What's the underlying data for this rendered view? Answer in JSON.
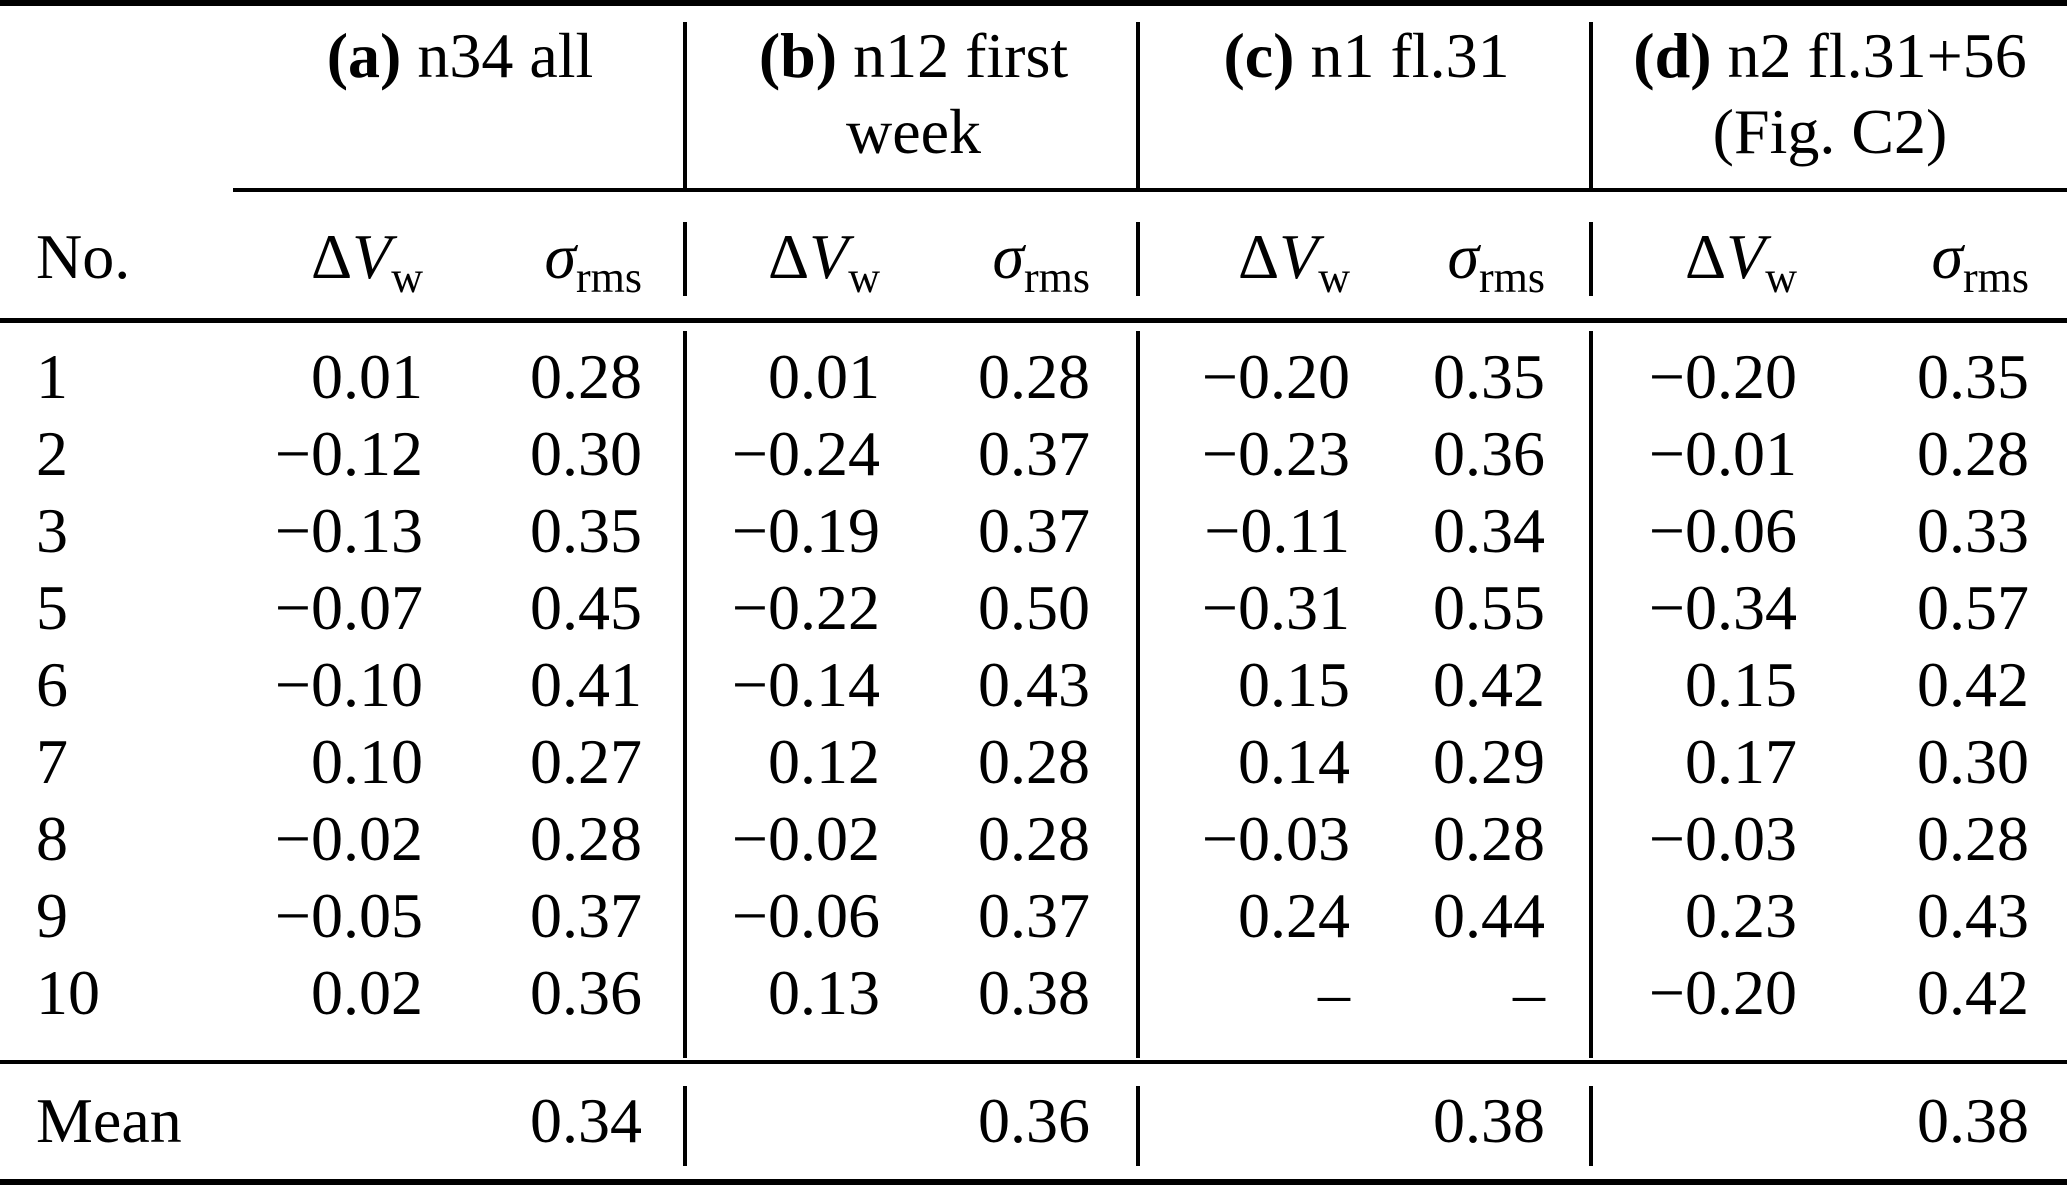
{
  "table": {
    "row_label_header": "No.",
    "groups": [
      {
        "tag": "(a)",
        "line1": "n34 all",
        "line2": ""
      },
      {
        "tag": "(b)",
        "line1": "n12 first",
        "line2": "week"
      },
      {
        "tag": "(c)",
        "line1": "n1 fl.31",
        "line2": ""
      },
      {
        "tag": "(d)",
        "line1": "n2 fl.31+56",
        "line2": "(Fig. C2)"
      }
    ],
    "sub": {
      "delta": "Δ",
      "v": "V",
      "w": "w",
      "sigma": "σ",
      "rms": "rms"
    },
    "rows": [
      {
        "no": "1",
        "values": [
          "0.01",
          "0.28",
          "0.01",
          "0.28",
          "−0.20",
          "0.35",
          "−0.20",
          "0.35"
        ]
      },
      {
        "no": "2",
        "values": [
          "−0.12",
          "0.30",
          "−0.24",
          "0.37",
          "−0.23",
          "0.36",
          "−0.01",
          "0.28"
        ]
      },
      {
        "no": "3",
        "values": [
          "−0.13",
          "0.35",
          "−0.19",
          "0.37",
          "−0.11",
          "0.34",
          "−0.06",
          "0.33"
        ]
      },
      {
        "no": "5",
        "values": [
          "−0.07",
          "0.45",
          "−0.22",
          "0.50",
          "−0.31",
          "0.55",
          "−0.34",
          "0.57"
        ]
      },
      {
        "no": "6",
        "values": [
          "−0.10",
          "0.41",
          "−0.14",
          "0.43",
          "0.15",
          "0.42",
          "0.15",
          "0.42"
        ]
      },
      {
        "no": "7",
        "values": [
          "0.10",
          "0.27",
          "0.12",
          "0.28",
          "0.14",
          "0.29",
          "0.17",
          "0.30"
        ]
      },
      {
        "no": "8",
        "values": [
          "−0.02",
          "0.28",
          "−0.02",
          "0.28",
          "−0.03",
          "0.28",
          "−0.03",
          "0.28"
        ]
      },
      {
        "no": "9",
        "values": [
          "−0.05",
          "0.37",
          "−0.06",
          "0.37",
          "0.24",
          "0.44",
          "0.23",
          "0.43"
        ]
      },
      {
        "no": "10",
        "values": [
          "0.02",
          "0.36",
          "0.13",
          "0.38",
          "–",
          "–",
          "−0.20",
          "0.42"
        ]
      }
    ],
    "mean": {
      "label": "Mean",
      "values": [
        "0.34",
        "0.36",
        "0.38",
        "0.38"
      ]
    }
  },
  "chart_data": {
    "type": "table",
    "title": "",
    "column_groups": [
      "(a) n34 all",
      "(b) n12 first week",
      "(c) n1 fl.31",
      "(d) n2 fl.31+56 (Fig. C2)"
    ],
    "columns_per_group": [
      "ΔV_w",
      "σ_rms"
    ],
    "row_ids": [
      1,
      2,
      3,
      5,
      6,
      7,
      8,
      9,
      10
    ],
    "series": [
      {
        "name": "a_dVw",
        "values": [
          0.01,
          -0.12,
          -0.13,
          -0.07,
          -0.1,
          0.1,
          -0.02,
          -0.05,
          0.02
        ]
      },
      {
        "name": "a_srms",
        "values": [
          0.28,
          0.3,
          0.35,
          0.45,
          0.41,
          0.27,
          0.28,
          0.37,
          0.36
        ]
      },
      {
        "name": "b_dVw",
        "values": [
          0.01,
          -0.24,
          -0.19,
          -0.22,
          -0.14,
          0.12,
          -0.02,
          -0.06,
          0.13
        ]
      },
      {
        "name": "b_srms",
        "values": [
          0.28,
          0.37,
          0.37,
          0.5,
          0.43,
          0.28,
          0.28,
          0.37,
          0.38
        ]
      },
      {
        "name": "c_dVw",
        "values": [
          -0.2,
          -0.23,
          -0.11,
          -0.31,
          0.15,
          0.14,
          -0.03,
          0.24,
          null
        ]
      },
      {
        "name": "c_srms",
        "values": [
          0.35,
          0.36,
          0.34,
          0.55,
          0.42,
          0.29,
          0.28,
          0.44,
          null
        ]
      },
      {
        "name": "d_dVw",
        "values": [
          -0.2,
          -0.01,
          -0.06,
          -0.34,
          0.15,
          0.17,
          -0.03,
          0.23,
          -0.2
        ]
      },
      {
        "name": "d_srms",
        "values": [
          0.35,
          0.28,
          0.33,
          0.57,
          0.42,
          0.3,
          0.28,
          0.43,
          0.42
        ]
      }
    ],
    "mean_srms": [
      0.34,
      0.36,
      0.38,
      0.38
    ]
  }
}
